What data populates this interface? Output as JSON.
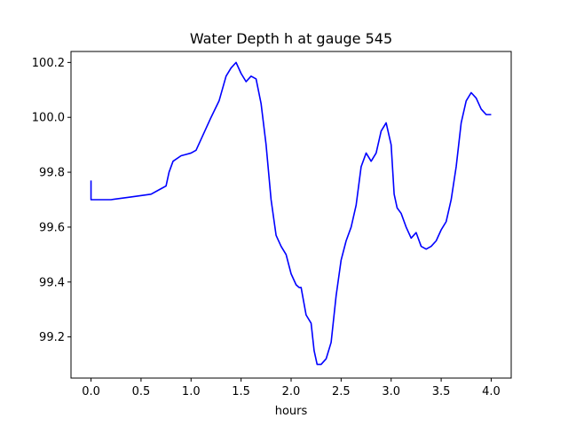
{
  "chart_data": {
    "type": "line",
    "title": "Water Depth h at gauge 545",
    "xlabel": "hours",
    "ylabel": "",
    "xlim": [
      -0.2,
      4.2
    ],
    "ylim": [
      99.05,
      100.24
    ],
    "xticks": [
      0.0,
      0.5,
      1.0,
      1.5,
      2.0,
      2.5,
      3.0,
      3.5,
      4.0
    ],
    "xtick_labels": [
      "0.0",
      "0.5",
      "1.0",
      "1.5",
      "2.0",
      "2.5",
      "3.0",
      "3.5",
      "4.0"
    ],
    "yticks": [
      99.2,
      99.4,
      99.6,
      99.8,
      100.0,
      100.2
    ],
    "ytick_labels": [
      "99.2",
      "99.4",
      "99.6",
      "99.8",
      "100.0",
      "100.2"
    ],
    "grid": false,
    "series": [
      {
        "color": "#0000ff",
        "x": [
          0.0,
          0.0,
          0.2,
          0.4,
          0.6,
          0.7,
          0.75,
          0.78,
          0.82,
          0.9,
          0.95,
          1.0,
          1.05,
          1.1,
          1.2,
          1.28,
          1.35,
          1.4,
          1.45,
          1.5,
          1.55,
          1.6,
          1.65,
          1.7,
          1.75,
          1.8,
          1.85,
          1.9,
          1.95,
          2.0,
          2.05,
          2.08,
          2.1,
          2.15,
          2.2,
          2.23,
          2.26,
          2.3,
          2.35,
          2.4,
          2.45,
          2.5,
          2.55,
          2.6,
          2.65,
          2.7,
          2.75,
          2.8,
          2.85,
          2.9,
          2.95,
          3.0,
          3.03,
          3.06,
          3.1,
          3.15,
          3.2,
          3.25,
          3.3,
          3.35,
          3.4,
          3.45,
          3.5,
          3.55,
          3.6,
          3.65,
          3.7,
          3.75,
          3.8,
          3.85,
          3.9,
          3.95,
          4.0
        ],
        "y": [
          99.77,
          99.7,
          99.7,
          99.71,
          99.72,
          99.74,
          99.75,
          99.8,
          99.84,
          99.86,
          99.865,
          99.87,
          99.88,
          99.92,
          100.0,
          100.06,
          100.15,
          100.18,
          100.2,
          100.16,
          100.13,
          100.15,
          100.14,
          100.05,
          99.9,
          99.7,
          99.57,
          99.53,
          99.5,
          99.43,
          99.39,
          99.38,
          99.38,
          99.28,
          99.25,
          99.15,
          99.1,
          99.1,
          99.12,
          99.18,
          99.35,
          99.48,
          99.55,
          99.6,
          99.68,
          99.82,
          99.87,
          99.84,
          99.87,
          99.95,
          99.98,
          99.9,
          99.72,
          99.67,
          99.65,
          99.6,
          99.56,
          99.58,
          99.53,
          99.52,
          99.53,
          99.55,
          99.59,
          99.62,
          99.7,
          99.82,
          99.98,
          100.06,
          100.09,
          100.07,
          100.03,
          100.01,
          100.01
        ]
      }
    ]
  }
}
